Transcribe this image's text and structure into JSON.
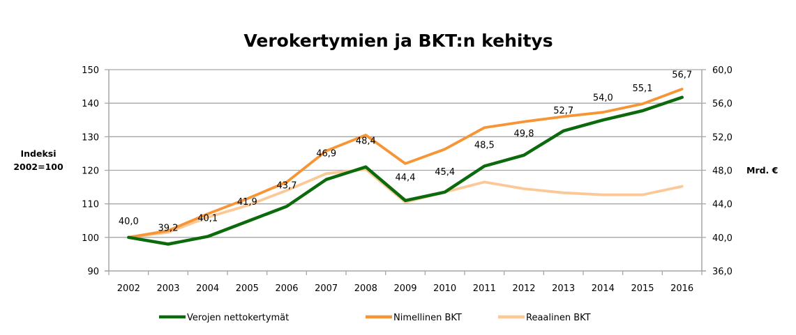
{
  "chart_data": {
    "type": "line",
    "title": "Verokertymien ja BKT:n kehitys",
    "ylabel": [
      "Indeksi",
      "2002=100"
    ],
    "y2label": "Mrd. €",
    "xlabel": "",
    "ylim": [
      90,
      150
    ],
    "y_ticks": [
      "150",
      "140",
      "130",
      "120",
      "110",
      "100",
      "90"
    ],
    "y_tick_values": [
      150,
      140,
      130,
      120,
      110,
      100,
      90
    ],
    "y2lim": [
      36,
      60
    ],
    "y2_ticks": [
      "60,0",
      "56,0",
      "52,0",
      "48,0",
      "44,0",
      "40,0",
      "36,0"
    ],
    "y2_tick_values": [
      60,
      56,
      52,
      48,
      44,
      40,
      36
    ],
    "grid": true,
    "legend_position": "bottom",
    "categories": [
      "2002",
      "2003",
      "2004",
      "2005",
      "2006",
      "2007",
      "2008",
      "2009",
      "2010",
      "2011",
      "2012",
      "2013",
      "2014",
      "2015",
      "2016"
    ],
    "series": [
      {
        "name": "Reaalinen BKT",
        "color": "#fcc896",
        "values": [
          100,
          101.5,
          106,
          109.5,
          114,
          119,
          120.3,
          110.5,
          113.5,
          116.5,
          114.5,
          113.3,
          112.7,
          112.7,
          115.2
        ]
      },
      {
        "name": "Nimellinen BKT",
        "color": "#f79433",
        "values": [
          100,
          102,
          107,
          111.5,
          116.5,
          125.8,
          130.5,
          122,
          126.3,
          132.7,
          134.5,
          136,
          137.3,
          139.8,
          144.2
        ]
      },
      {
        "name": "Verojen nettokertymät",
        "color": "#0b6a0b",
        "values": [
          100,
          98,
          100.25,
          104.75,
          109.25,
          117.25,
          121,
          111,
          113.5,
          121.25,
          124.5,
          131.75,
          135,
          137.75,
          141.75
        ],
        "data_labels": [
          "40,0",
          "39,2",
          "40,1",
          "41,9",
          "43,7",
          "46,9",
          "48,4",
          "44,4",
          "45,4",
          "48,5",
          "49,8",
          "52,7",
          "54,0",
          "55,1",
          "56,7"
        ]
      }
    ],
    "legend_order": [
      "Verojen nettokertymät",
      "Nimellinen BKT",
      "Reaalinen BKT"
    ]
  }
}
